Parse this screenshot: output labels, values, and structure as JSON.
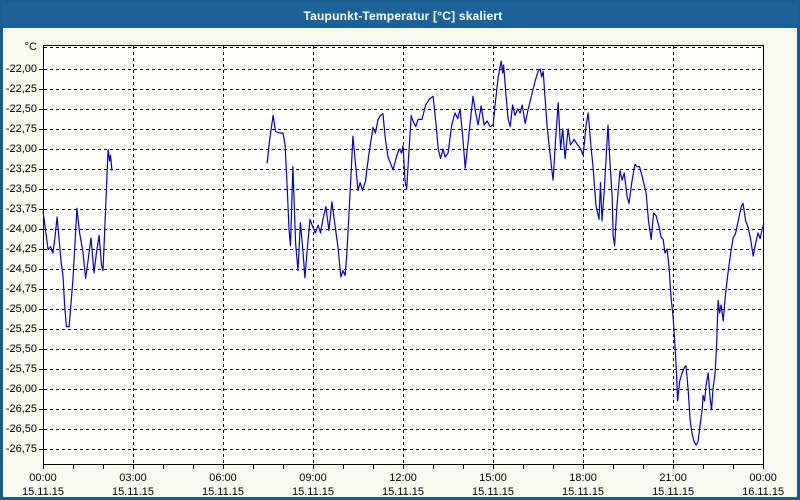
{
  "window": {
    "title": "Taupunkt-Temperatur [°C] skaliert"
  },
  "chart_data": {
    "type": "line",
    "title": "Taupunkt-Temperatur [°C] skaliert",
    "unit_label": "°C",
    "xlabel": "",
    "ylabel": "°C",
    "xlim_hours": [
      0,
      24.03
    ],
    "ylim": [
      -26.95,
      -21.7
    ],
    "grid": true,
    "legend": "none",
    "x_minor_tick_every_hours": 1,
    "x_ticks": [
      {
        "h": 0,
        "time": "00:00",
        "date": "15.11.15"
      },
      {
        "h": 3,
        "time": "03:00",
        "date": "15.11.15"
      },
      {
        "h": 6,
        "time": "06:00",
        "date": "15.11.15"
      },
      {
        "h": 9,
        "time": "09:00",
        "date": "15.11.15"
      },
      {
        "h": 12,
        "time": "12:00",
        "date": "15.11.15"
      },
      {
        "h": 15,
        "time": "15:00",
        "date": "15.11.15"
      },
      {
        "h": 18,
        "time": "18:00",
        "date": "15.11.15"
      },
      {
        "h": 21,
        "time": "21:00",
        "date": "15.11.15"
      },
      {
        "h": 24,
        "time": "00:00",
        "date": "16.11.15"
      }
    ],
    "y_ticks": [
      {
        "v": -22.0,
        "label": "-22,00"
      },
      {
        "v": -22.25,
        "label": "-22,25"
      },
      {
        "v": -22.5,
        "label": "-22,50"
      },
      {
        "v": -22.75,
        "label": "-22,75"
      },
      {
        "v": -23.0,
        "label": "-23,00"
      },
      {
        "v": -23.25,
        "label": "-23,25"
      },
      {
        "v": -23.5,
        "label": "-23,50"
      },
      {
        "v": -23.75,
        "label": "-23,75"
      },
      {
        "v": -24.0,
        "label": "-24,00"
      },
      {
        "v": -24.25,
        "label": "-24,25"
      },
      {
        "v": -24.5,
        "label": "-24,50"
      },
      {
        "v": -24.75,
        "label": "-24,75"
      },
      {
        "v": -25.0,
        "label": "-25,00"
      },
      {
        "v": -25.25,
        "label": "-25,25"
      },
      {
        "v": -25.5,
        "label": "-25,50"
      },
      {
        "v": -25.75,
        "label": "-25,75"
      },
      {
        "v": -26.0,
        "label": "-26,00"
      },
      {
        "v": -26.25,
        "label": "-26,25"
      },
      {
        "v": -26.5,
        "label": "-26,50"
      },
      {
        "v": -26.75,
        "label": "-26,75"
      }
    ],
    "colors": {
      "line": "#0202c8",
      "titlebar_bg": "#1d6399",
      "titlebar_text": "#ffffff",
      "window_bg": "#f9faef",
      "plot_bg": "#fffffd",
      "grid": "#000000",
      "frame": "#000000",
      "border": "#1b5c8e",
      "label_text": "#000000"
    },
    "series": [
      {
        "name": "Taupunkt",
        "segments": [
          [
            [
              0.0,
              -23.78
            ],
            [
              0.08,
              -24.0
            ],
            [
              0.17,
              -24.26
            ],
            [
              0.25,
              -24.22
            ],
            [
              0.33,
              -24.3
            ],
            [
              0.4,
              -24.1
            ],
            [
              0.47,
              -23.85
            ],
            [
              0.53,
              -24.1
            ],
            [
              0.6,
              -24.4
            ],
            [
              0.67,
              -24.6
            ],
            [
              0.72,
              -24.95
            ],
            [
              0.78,
              -25.22
            ],
            [
              0.87,
              -25.22
            ],
            [
              0.93,
              -24.95
            ],
            [
              1.0,
              -24.62
            ],
            [
              1.07,
              -24.15
            ],
            [
              1.13,
              -23.74
            ],
            [
              1.22,
              -24.05
            ],
            [
              1.33,
              -24.28
            ],
            [
              1.42,
              -24.62
            ],
            [
              1.5,
              -24.4
            ],
            [
              1.6,
              -24.11
            ],
            [
              1.7,
              -24.55
            ],
            [
              1.78,
              -24.3
            ],
            [
              1.87,
              -24.08
            ],
            [
              1.95,
              -24.45
            ],
            [
              2.0,
              -24.52
            ],
            [
              2.07,
              -23.9
            ],
            [
              2.13,
              -23.35
            ],
            [
              2.17,
              -23.01
            ],
            [
              2.22,
              -23.15
            ],
            [
              2.25,
              -23.08
            ],
            [
              2.3,
              -23.27
            ]
          ],
          [
            [
              7.47,
              -23.18
            ],
            [
              7.55,
              -22.9
            ],
            [
              7.67,
              -22.58
            ],
            [
              7.75,
              -22.78
            ],
            [
              7.88,
              -22.8
            ],
            [
              8.0,
              -22.8
            ],
            [
              8.07,
              -22.95
            ],
            [
              8.13,
              -23.4
            ],
            [
              8.2,
              -24.0
            ],
            [
              8.25,
              -24.21
            ],
            [
              8.33,
              -23.22
            ],
            [
              8.42,
              -24.18
            ],
            [
              8.5,
              -24.52
            ],
            [
              8.58,
              -23.92
            ],
            [
              8.67,
              -24.3
            ],
            [
              8.73,
              -24.61
            ],
            [
              8.82,
              -24.2
            ],
            [
              8.9,
              -23.88
            ],
            [
              9.0,
              -23.98
            ],
            [
              9.08,
              -24.05
            ],
            [
              9.17,
              -23.95
            ],
            [
              9.25,
              -24.05
            ],
            [
              9.33,
              -23.88
            ],
            [
              9.43,
              -23.72
            ],
            [
              9.53,
              -24.02
            ],
            [
              9.63,
              -23.66
            ],
            [
              9.75,
              -24.0
            ],
            [
              9.83,
              -24.22
            ],
            [
              9.93,
              -24.6
            ],
            [
              10.0,
              -24.52
            ],
            [
              10.07,
              -24.58
            ],
            [
              10.13,
              -24.3
            ],
            [
              10.2,
              -23.8
            ],
            [
              10.27,
              -23.3
            ],
            [
              10.33,
              -22.84
            ],
            [
              10.42,
              -23.2
            ],
            [
              10.5,
              -23.52
            ],
            [
              10.57,
              -23.42
            ],
            [
              10.65,
              -23.52
            ],
            [
              10.75,
              -23.4
            ],
            [
              10.85,
              -23.1
            ],
            [
              11.0,
              -22.73
            ],
            [
              11.08,
              -22.8
            ],
            [
              11.17,
              -22.63
            ],
            [
              11.25,
              -22.58
            ],
            [
              11.33,
              -22.56
            ],
            [
              11.42,
              -22.9
            ],
            [
              11.5,
              -23.1
            ],
            [
              11.67,
              -23.26
            ],
            [
              11.78,
              -23.1
            ],
            [
              11.87,
              -23.0
            ],
            [
              11.95,
              -23.05
            ],
            [
              12.0,
              -22.96
            ],
            [
              12.07,
              -23.42
            ],
            [
              12.12,
              -23.5
            ],
            [
              12.2,
              -23.0
            ],
            [
              12.27,
              -22.58
            ],
            [
              12.33,
              -22.65
            ],
            [
              12.42,
              -22.72
            ],
            [
              12.5,
              -22.63
            ],
            [
              12.63,
              -22.63
            ],
            [
              12.75,
              -22.45
            ],
            [
              12.87,
              -22.38
            ],
            [
              13.0,
              -22.34
            ],
            [
              13.1,
              -22.7
            ],
            [
              13.17,
              -23.0
            ],
            [
              13.25,
              -23.12
            ],
            [
              13.33,
              -23.0
            ],
            [
              13.4,
              -23.1
            ],
            [
              13.5,
              -23.05
            ],
            [
              13.62,
              -22.7
            ],
            [
              13.73,
              -22.55
            ],
            [
              13.82,
              -22.62
            ],
            [
              13.9,
              -22.5
            ],
            [
              14.0,
              -22.9
            ],
            [
              14.07,
              -23.24
            ],
            [
              14.17,
              -22.9
            ],
            [
              14.33,
              -22.34
            ],
            [
              14.42,
              -22.55
            ],
            [
              14.5,
              -22.7
            ],
            [
              14.6,
              -22.46
            ],
            [
              14.7,
              -22.7
            ],
            [
              14.8,
              -22.65
            ],
            [
              14.9,
              -22.72
            ],
            [
              15.0,
              -22.7
            ],
            [
              15.08,
              -22.4
            ],
            [
              15.17,
              -22.1
            ],
            [
              15.27,
              -21.9
            ],
            [
              15.32,
              -22.05
            ],
            [
              15.35,
              -21.95
            ],
            [
              15.43,
              -22.33
            ],
            [
              15.5,
              -22.62
            ],
            [
              15.57,
              -22.72
            ],
            [
              15.65,
              -22.45
            ],
            [
              15.73,
              -22.58
            ],
            [
              15.82,
              -22.5
            ],
            [
              15.9,
              -22.55
            ],
            [
              15.97,
              -22.45
            ],
            [
              16.07,
              -22.68
            ],
            [
              16.17,
              -22.5
            ],
            [
              16.25,
              -22.38
            ],
            [
              16.4,
              -22.15
            ],
            [
              16.5,
              -22.03
            ],
            [
              16.57,
              -22.0
            ],
            [
              16.62,
              -22.1
            ],
            [
              16.67,
              -22.03
            ],
            [
              16.73,
              -22.35
            ],
            [
              16.8,
              -22.72
            ],
            [
              16.88,
              -23.0
            ],
            [
              16.97,
              -23.3
            ],
            [
              17.0,
              -23.39
            ],
            [
              17.08,
              -22.9
            ],
            [
              17.17,
              -22.42
            ],
            [
              17.25,
              -23.0
            ],
            [
              17.32,
              -22.75
            ],
            [
              17.4,
              -23.12
            ],
            [
              17.5,
              -22.75
            ],
            [
              17.58,
              -22.95
            ],
            [
              17.7,
              -22.88
            ],
            [
              17.82,
              -22.95
            ],
            [
              17.92,
              -23.0
            ],
            [
              18.0,
              -23.08
            ],
            [
              18.1,
              -22.7
            ],
            [
              18.17,
              -22.55
            ],
            [
              18.27,
              -23.0
            ],
            [
              18.33,
              -23.22
            ],
            [
              18.43,
              -23.71
            ],
            [
              18.53,
              -23.88
            ],
            [
              18.58,
              -23.42
            ],
            [
              18.63,
              -23.9
            ],
            [
              18.7,
              -23.55
            ],
            [
              18.83,
              -22.7
            ],
            [
              18.9,
              -23.2
            ],
            [
              18.97,
              -23.6
            ],
            [
              19.0,
              -24.08
            ],
            [
              19.05,
              -24.21
            ],
            [
              19.13,
              -23.7
            ],
            [
              19.23,
              -23.27
            ],
            [
              19.3,
              -23.39
            ],
            [
              19.37,
              -23.3
            ],
            [
              19.47,
              -23.6
            ],
            [
              19.53,
              -23.68
            ],
            [
              19.63,
              -23.4
            ],
            [
              19.73,
              -23.19
            ],
            [
              19.8,
              -23.22
            ],
            [
              19.88,
              -23.22
            ],
            [
              20.0,
              -23.39
            ],
            [
              20.1,
              -23.55
            ],
            [
              20.18,
              -23.9
            ],
            [
              20.27,
              -24.13
            ],
            [
              20.35,
              -23.8
            ],
            [
              20.43,
              -23.83
            ],
            [
              20.53,
              -23.97
            ],
            [
              20.6,
              -24.1
            ],
            [
              20.67,
              -24.13
            ],
            [
              20.73,
              -24.3
            ],
            [
              20.8,
              -24.25
            ],
            [
              20.87,
              -24.5
            ],
            [
              20.93,
              -24.85
            ],
            [
              21.0,
              -25.1
            ],
            [
              21.07,
              -25.5
            ],
            [
              21.12,
              -25.85
            ],
            [
              21.15,
              -26.15
            ],
            [
              21.22,
              -25.9
            ],
            [
              21.3,
              -25.8
            ],
            [
              21.38,
              -25.73
            ],
            [
              21.43,
              -25.71
            ],
            [
              21.5,
              -26.0
            ],
            [
              21.57,
              -26.4
            ],
            [
              21.63,
              -26.55
            ],
            [
              21.7,
              -26.66
            ],
            [
              21.77,
              -26.7
            ],
            [
              21.83,
              -26.66
            ],
            [
              21.9,
              -26.45
            ],
            [
              21.97,
              -26.25
            ],
            [
              22.0,
              -26.08
            ],
            [
              22.05,
              -26.15
            ],
            [
              22.1,
              -25.95
            ],
            [
              22.17,
              -25.8
            ],
            [
              22.23,
              -26.1
            ],
            [
              22.28,
              -26.26
            ],
            [
              22.33,
              -26.0
            ],
            [
              22.4,
              -25.8
            ],
            [
              22.45,
              -25.45
            ],
            [
              22.5,
              -24.89
            ],
            [
              22.55,
              -25.05
            ],
            [
              22.6,
              -24.95
            ],
            [
              22.67,
              -25.15
            ],
            [
              22.75,
              -24.8
            ],
            [
              22.83,
              -24.55
            ],
            [
              22.92,
              -24.3
            ],
            [
              23.0,
              -24.11
            ],
            [
              23.08,
              -24.06
            ],
            [
              23.17,
              -23.9
            ],
            [
              23.27,
              -23.72
            ],
            [
              23.33,
              -23.68
            ],
            [
              23.42,
              -23.9
            ],
            [
              23.5,
              -23.98
            ],
            [
              23.58,
              -24.12
            ],
            [
              23.67,
              -24.34
            ],
            [
              23.75,
              -24.18
            ],
            [
              23.83,
              -24.05
            ],
            [
              23.9,
              -24.12
            ],
            [
              23.97,
              -24.0
            ],
            [
              24.03,
              -23.93
            ]
          ]
        ]
      }
    ]
  }
}
